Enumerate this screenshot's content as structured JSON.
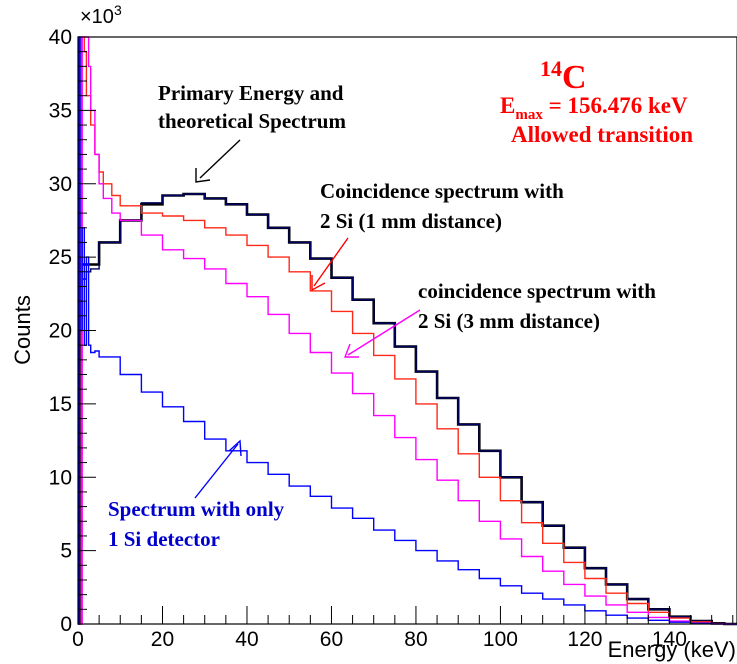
{
  "chart_data": {
    "type": "line",
    "xlabel": "Energy (keV)",
    "ylabel": "Counts",
    "xlim": [
      0,
      156
    ],
    "ylim": [
      0,
      40000
    ],
    "x_ticks": [
      0,
      20,
      40,
      60,
      80,
      100,
      120,
      140
    ],
    "y_ticks": [
      0,
      5,
      10,
      15,
      20,
      25,
      30,
      35,
      40
    ],
    "y_multiplier": "×10",
    "y_multiplier_exp": "3",
    "grid": false,
    "legend": "none",
    "series": [
      {
        "key": "theory",
        "color": "#000000",
        "x": [
          0,
          5,
          10,
          15,
          20,
          25,
          30,
          35,
          40,
          45,
          50,
          55,
          60,
          65,
          70,
          75,
          80,
          85,
          90,
          95,
          100,
          105,
          110,
          115,
          120,
          125,
          130,
          135,
          140,
          145,
          150,
          153,
          156
        ],
        "y": [
          24500,
          26000,
          27500,
          28600,
          29200,
          29300,
          29000,
          28600,
          27900,
          27000,
          26000,
          24900,
          23600,
          22100,
          20500,
          18900,
          17200,
          15400,
          13600,
          11800,
          10000,
          8300,
          6700,
          5200,
          3800,
          2700,
          1700,
          1000,
          500,
          200,
          50,
          0,
          0
        ]
      },
      {
        "key": "primary",
        "color": "#000066",
        "x": [
          0,
          0.5,
          1,
          2,
          3,
          5,
          10,
          15,
          20,
          25,
          30,
          35,
          40,
          45,
          50,
          55,
          60,
          65,
          70,
          75,
          80,
          85,
          90,
          95,
          100,
          105,
          110,
          115,
          120,
          125,
          130,
          135,
          140,
          145,
          150,
          153,
          156
        ],
        "y": [
          0,
          25000,
          23500,
          24000,
          24200,
          26000,
          27500,
          28700,
          29200,
          29300,
          29000,
          28600,
          27900,
          27000,
          26000,
          24900,
          23600,
          22100,
          20500,
          18900,
          17200,
          15400,
          13600,
          11800,
          10000,
          8300,
          6700,
          5200,
          3800,
          2700,
          1700,
          1000,
          500,
          200,
          50,
          0,
          0
        ]
      },
      {
        "key": "coinc_1mm",
        "color": "#ff2a1a",
        "x": [
          0,
          0.8,
          1.5,
          2,
          3,
          4,
          5,
          6,
          8,
          10,
          15,
          20,
          25,
          30,
          35,
          40,
          45,
          50,
          55,
          60,
          65,
          70,
          75,
          80,
          85,
          90,
          95,
          100,
          105,
          110,
          115,
          120,
          125,
          130,
          135,
          140,
          145,
          150,
          153,
          156
        ],
        "y": [
          0,
          40000,
          39000,
          36000,
          34000,
          32000,
          30800,
          30000,
          29200,
          28500,
          28000,
          27800,
          27500,
          27000,
          26500,
          25800,
          25000,
          24000,
          22700,
          21300,
          19800,
          18300,
          16700,
          15000,
          13300,
          11600,
          10000,
          8400,
          6900,
          5500,
          4200,
          3100,
          2100,
          1400,
          800,
          400,
          150,
          30,
          0,
          0
        ]
      },
      {
        "key": "coinc_3mm",
        "color": "#ff00ff",
        "x": [
          0,
          1,
          2,
          2.5,
          3,
          4,
          5,
          6,
          8,
          10,
          15,
          20,
          25,
          30,
          35,
          40,
          45,
          50,
          55,
          60,
          65,
          70,
          75,
          80,
          85,
          90,
          95,
          100,
          105,
          110,
          115,
          120,
          125,
          130,
          135,
          140,
          145,
          150,
          153,
          156
        ],
        "y": [
          0,
          40000,
          40000,
          38000,
          35000,
          32000,
          30000,
          29000,
          28000,
          27500,
          26500,
          25500,
          24900,
          24200,
          23200,
          22300,
          21100,
          19800,
          18500,
          17100,
          15700,
          14200,
          12700,
          11200,
          9800,
          8400,
          7000,
          5800,
          4600,
          3600,
          2700,
          1900,
          1300,
          800,
          450,
          200,
          60,
          10,
          0,
          0
        ]
      },
      {
        "key": "single_si",
        "color": "#0000ff",
        "x": [
          0,
          0.2,
          0.5,
          1,
          1.5,
          2,
          2.5,
          3,
          4,
          5,
          10,
          15,
          20,
          25,
          30,
          35,
          40,
          45,
          50,
          55,
          60,
          65,
          70,
          75,
          80,
          85,
          90,
          95,
          100,
          105,
          110,
          115,
          120,
          125,
          130,
          135,
          140,
          145,
          150,
          153,
          156
        ],
        "y": [
          0,
          40000,
          20000,
          27000,
          19000,
          25000,
          19000,
          18500,
          18600,
          18200,
          17000,
          15800,
          14800,
          13800,
          12600,
          11800,
          11000,
          10200,
          9400,
          8700,
          7900,
          7200,
          6400,
          5700,
          5000,
          4300,
          3700,
          3100,
          2600,
          2100,
          1700,
          1300,
          900,
          600,
          400,
          250,
          120,
          50,
          10,
          0,
          0
        ]
      }
    ],
    "annotations": {
      "primary_line1": "Primary Energy and",
      "primary_line2": "theoretical Spectrum",
      "coinc1_line1": "Coincidence spectrum with",
      "coinc1_line2": "2 Si (1 mm distance)",
      "coinc3_line1": "coincidence spectrum with",
      "coinc3_line2": "2 Si (3 mm distance)",
      "single_line1": "Spectrum with only",
      "single_line2": "1 Si detector",
      "isotope_mass": "14",
      "isotope_symbol": "C",
      "emax_e": "E",
      "emax_sub": "max",
      "emax_value": " = 156.476 keV",
      "transition": "Allowed transition"
    },
    "colors": {
      "annotation_red": "#ff0000",
      "arrow_primary": "#000000",
      "arrow_coinc1": "#ff0000",
      "arrow_coinc3": "#ff00ff",
      "arrow_single": "#0000ff"
    }
  }
}
